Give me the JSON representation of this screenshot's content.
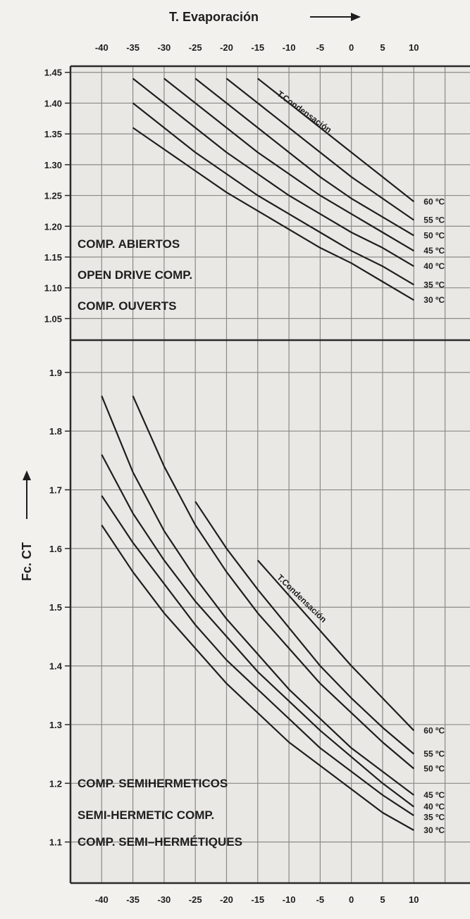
{
  "chart_data": [
    {
      "type": "line",
      "panel": "top",
      "xlabel": "T. Evaporación",
      "ylabel": "Fc. CT",
      "x_ticks": [
        -40,
        -35,
        -30,
        -25,
        -20,
        -15,
        -10,
        -5,
        0,
        5,
        10
      ],
      "y_ticks": [
        "1.45",
        "1.40",
        "1.35",
        "1.30",
        "1.25",
        "1.20",
        "1.15",
        "1.10",
        "1.05"
      ],
      "xlim": [
        -45,
        19
      ],
      "ylim": [
        1.015,
        1.46
      ],
      "grid": true,
      "panel_labels": [
        "COMP. ABIERTOS",
        "OPEN DRIVE COMP.",
        "COMP. OUVERTS"
      ],
      "curve_annotation": "T.Condensación",
      "series": [
        {
          "name": "60 ºC",
          "x": [
            -15,
            -10,
            -5,
            0,
            5,
            10
          ],
          "y": [
            1.44,
            1.4,
            1.36,
            1.32,
            1.28,
            1.24
          ]
        },
        {
          "name": "55 ºC",
          "x": [
            -20,
            -15,
            -10,
            -5,
            0,
            5,
            10
          ],
          "y": [
            1.44,
            1.4,
            1.36,
            1.32,
            1.28,
            1.245,
            1.21
          ]
        },
        {
          "name": "50 ºC",
          "x": [
            -25,
            -20,
            -15,
            -10,
            -5,
            0,
            5,
            10
          ],
          "y": [
            1.44,
            1.4,
            1.36,
            1.32,
            1.28,
            1.245,
            1.215,
            1.185
          ]
        },
        {
          "name": "45 ºC",
          "x": [
            -30,
            -25,
            -20,
            -15,
            -10,
            -5,
            0,
            5,
            10
          ],
          "y": [
            1.44,
            1.4,
            1.36,
            1.32,
            1.285,
            1.25,
            1.22,
            1.19,
            1.16
          ]
        },
        {
          "name": "40 ºC",
          "x": [
            -35,
            -30,
            -25,
            -20,
            -15,
            -10,
            -5,
            0,
            5,
            10
          ],
          "y": [
            1.44,
            1.4,
            1.36,
            1.32,
            1.285,
            1.25,
            1.22,
            1.19,
            1.165,
            1.135
          ]
        },
        {
          "name": "35 ºC",
          "x": [
            -35,
            -30,
            -25,
            -20,
            -15,
            -10,
            -5,
            0,
            5,
            10
          ],
          "y": [
            1.4,
            1.36,
            1.32,
            1.285,
            1.25,
            1.22,
            1.19,
            1.16,
            1.135,
            1.105
          ]
        },
        {
          "name": "30 ºC",
          "x": [
            -35,
            -30,
            -25,
            -20,
            -15,
            -10,
            -5,
            0,
            5,
            10
          ],
          "y": [
            1.36,
            1.325,
            1.29,
            1.255,
            1.225,
            1.195,
            1.165,
            1.14,
            1.11,
            1.08
          ]
        }
      ]
    },
    {
      "type": "line",
      "panel": "bottom",
      "xlabel": "T. Evaporación",
      "ylabel": "Fc. CT",
      "x_ticks": [
        -40,
        -35,
        -30,
        -25,
        -20,
        -15,
        -10,
        -5,
        0,
        5,
        10
      ],
      "y_ticks": [
        "1.9",
        "1.8",
        "1.7",
        "1.6",
        "1.5",
        "1.4",
        "1.3",
        "1.2",
        "1.1"
      ],
      "xlim": [
        -45,
        19
      ],
      "ylim": [
        1.03,
        1.955
      ],
      "grid": true,
      "panel_labels": [
        "COMP. SEMIHERMETICOS",
        "SEMI-HERMETIC COMP.",
        "COMP. SEMI–HERMÉTIQUES"
      ],
      "curve_annotation": "T.Condensación",
      "series": [
        {
          "name": "60 ºC",
          "x": [
            -15,
            -10,
            -5,
            0,
            5,
            10
          ],
          "y": [
            1.58,
            1.52,
            1.46,
            1.4,
            1.345,
            1.29
          ]
        },
        {
          "name": "55 ºC",
          "x": [
            -25,
            -20,
            -15,
            -10,
            -5,
            0,
            5,
            10
          ],
          "y": [
            1.68,
            1.6,
            1.53,
            1.465,
            1.4,
            1.345,
            1.295,
            1.25
          ]
        },
        {
          "name": "50 ºC",
          "x": [
            -35,
            -30,
            -25,
            -20,
            -15,
            -10,
            -5,
            0,
            5,
            10
          ],
          "y": [
            1.86,
            1.74,
            1.64,
            1.56,
            1.49,
            1.43,
            1.37,
            1.32,
            1.27,
            1.225
          ]
        },
        {
          "name": "45 ºC",
          "x": [
            -40,
            -35,
            -30,
            -25,
            -20,
            -15,
            -10,
            -5,
            0,
            5,
            10
          ],
          "y": [
            1.86,
            1.73,
            1.63,
            1.55,
            1.48,
            1.42,
            1.36,
            1.31,
            1.26,
            1.22,
            1.18
          ]
        },
        {
          "name": "40 ºC",
          "x": [
            -40,
            -35,
            -30,
            -25,
            -20,
            -15,
            -10,
            -5,
            0,
            5,
            10
          ],
          "y": [
            1.76,
            1.66,
            1.58,
            1.51,
            1.45,
            1.39,
            1.34,
            1.29,
            1.245,
            1.2,
            1.16
          ]
        },
        {
          "name": "35 ºC",
          "x": [
            -40,
            -35,
            -30,
            -25,
            -20,
            -15,
            -10,
            -5,
            0,
            5,
            10
          ],
          "y": [
            1.69,
            1.61,
            1.54,
            1.47,
            1.41,
            1.36,
            1.31,
            1.26,
            1.22,
            1.18,
            1.145
          ]
        },
        {
          "name": "30 ºC",
          "x": [
            -40,
            -35,
            -30,
            -25,
            -20,
            -15,
            -10,
            -5,
            0,
            5,
            10
          ],
          "y": [
            1.64,
            1.56,
            1.49,
            1.43,
            1.37,
            1.32,
            1.27,
            1.23,
            1.19,
            1.15,
            1.12
          ]
        }
      ]
    }
  ]
}
